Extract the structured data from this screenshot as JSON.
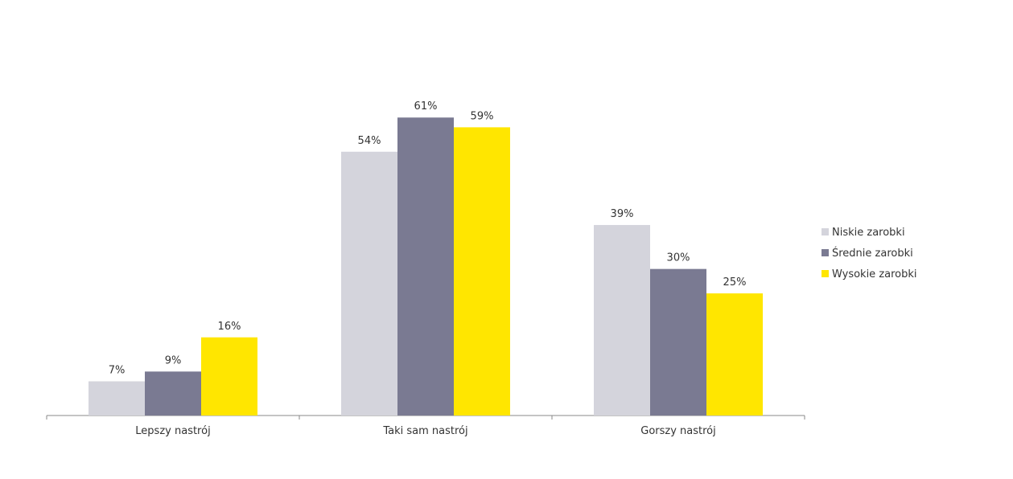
{
  "chart_data": {
    "type": "bar",
    "title": "",
    "xlabel": "",
    "ylabel": "",
    "ylim": [
      0,
      64
    ],
    "grid": false,
    "legend_position": "right",
    "categories": [
      "Lepszy nastrój",
      "Taki sam nastrój",
      "Gorszy nastrój"
    ],
    "series": [
      {
        "name": "Niskie zarobki",
        "color": "#d4d4dc",
        "values": [
          7,
          54,
          39
        ],
        "labels": [
          "7%",
          "54%",
          "39%"
        ]
      },
      {
        "name": "Średnie zarobki",
        "color": "#7a7a92",
        "values": [
          9,
          61,
          30
        ],
        "labels": [
          "9%",
          "61%",
          "30%"
        ]
      },
      {
        "name": "Wysokie zarobki",
        "color": "#ffe600",
        "values": [
          16,
          59,
          25
        ],
        "labels": [
          "16%",
          "59%",
          "25%"
        ]
      }
    ]
  }
}
